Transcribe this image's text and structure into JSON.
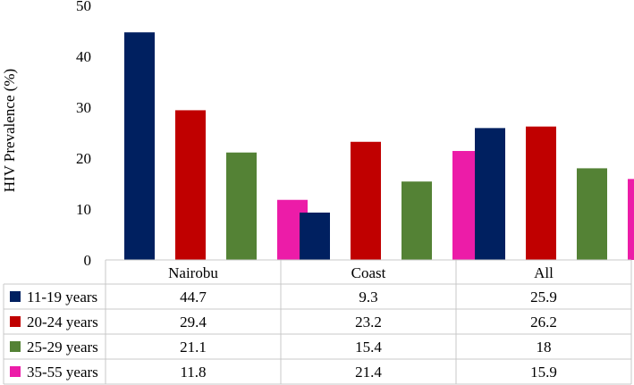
{
  "chart_data": {
    "type": "bar",
    "ylabel": "HIV Prevalence (%)",
    "ylim": [
      0,
      50
    ],
    "yticks": [
      0,
      10,
      20,
      30,
      40,
      50
    ],
    "categories": [
      "Nairobu",
      "Coast",
      "All"
    ],
    "series": [
      {
        "name": "11-19 years",
        "color": "#002060",
        "values": [
          44.7,
          9.3,
          25.9
        ]
      },
      {
        "name": "20-24 years",
        "color": "#C00000",
        "values": [
          29.4,
          23.2,
          26.2
        ]
      },
      {
        "name": "25-29 years",
        "color": "#548235",
        "values": [
          21.1,
          15.4,
          18
        ]
      },
      {
        "name": "35-55 years",
        "color": "#EC1CA8",
        "values": [
          11.8,
          21.4,
          15.9
        ]
      }
    ],
    "data_table": true,
    "grid": false
  }
}
